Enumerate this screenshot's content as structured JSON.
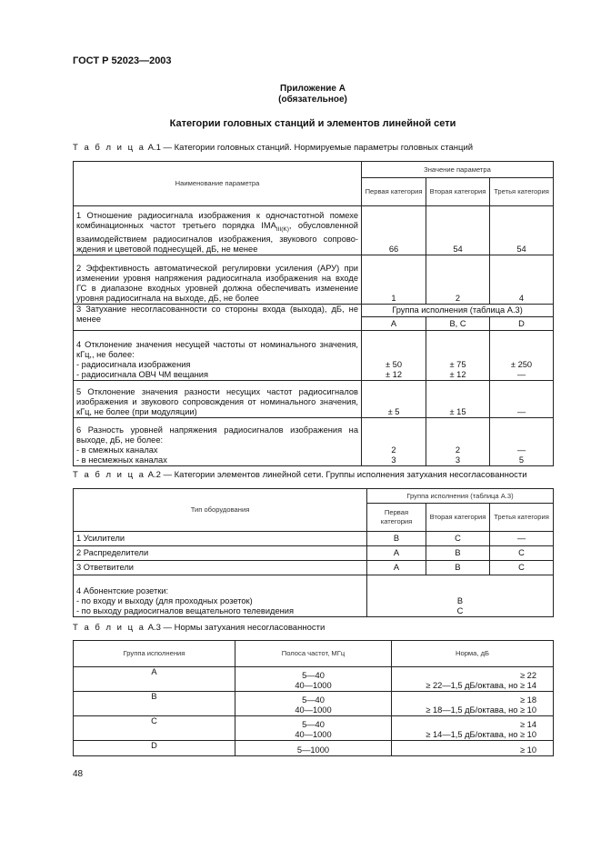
{
  "header": "ГОСТ Р 52023—2003",
  "appendix": {
    "title": "Приложение А",
    "status": "(обязательное)"
  },
  "heading": "Категории головных станций и элементов линейной сети",
  "table_a1": {
    "caption_prefix": "Т а б л и ц а",
    "caption": "А.1 — Категории головных станций. Нормируемые параметры головных станций",
    "col_param": "Наименование параметра",
    "col_value": "Значение параметра",
    "categories": [
      "Первая категория",
      "Вторая категория",
      "Третья категория"
    ],
    "rows": [
      {
        "text": "1 Отношение радиосигнала изображения к одночастотной помехе комбинационных частот третьего порядка IMA",
        "sub": "III(K)",
        "text2": ", обусловленной взаимодействием радиосигналов изображения, звукового сопрово-ждения и цветовой поднесущей, дБ, не менее",
        "v": [
          "66",
          "54",
          "54"
        ]
      },
      {
        "text": "2 Эффективность автоматической регулировки усиления (АРУ) при изменении уровня напряжения радиосигнала изображения на входе ГС в диапазоне входных уровней должна обеспечивать изменение уровня радиосигнала на выходе, дБ, не более",
        "v": [
          "1",
          "2",
          "4"
        ]
      },
      {
        "text": "3 Затухание несогласованности со стороны входа (выхода), дБ, не менее",
        "span": "Группа исполнения (таблица А.3)",
        "v": [
          "A",
          "B, C",
          "D"
        ]
      },
      {
        "lines": [
          "4 Отклонение значения несущей частоты от номинального значения, кГц,, не более:",
          " - радиосигнала изображения",
          " - радиосигнала ОВЧ ЧМ вещания"
        ],
        "v": [
          "± 50\n± 12",
          "± 75\n± 12",
          "± 250\n—"
        ]
      },
      {
        "text": "5 Отклонение значения разности несущих частот радиосигналов изображения и звукового сопровождения от номинального значения, кГц, не более (при модуляции)",
        "v": [
          "± 5",
          "± 15",
          "—"
        ]
      },
      {
        "lines": [
          "6 Разность уровней напряжения радиосигналов изображения на выходе, дБ, не более:",
          "- в смежных каналах",
          "- в несмежных каналах"
        ],
        "v": [
          "2\n3",
          "2\n3",
          "—\n5"
        ]
      }
    ]
  },
  "table_a2": {
    "caption_prefix": "Т а б л и ц а",
    "caption": "А.2 — Категории элементов линейной сети. Группы исполнения затухания несогласованности",
    "col_type": "Тип оборудования",
    "col_group": "Группа исполнения (таблица А.3)",
    "categories": [
      "Первая категория",
      "Вторая категория",
      "Третья категория"
    ],
    "rows": [
      {
        "name": "1 Усилители",
        "v": [
          "B",
          "C",
          "—"
        ]
      },
      {
        "name": "2 Распределители",
        "v": [
          "A",
          "B",
          "C"
        ]
      },
      {
        "name": "3 Ответвители",
        "v": [
          "A",
          "B",
          "C"
        ]
      }
    ],
    "row4": {
      "lines": [
        "4 Абонентские розетки:",
        "- по входу и выходу (для проходных розеток)",
        "- по выходу радиосигналов вещательного телевидения"
      ],
      "v": [
        "B",
        "C"
      ]
    }
  },
  "table_a3": {
    "caption_prefix": "Т а б л и ц а",
    "caption": "А.3 — Нормы затухания несогласованности",
    "headers": [
      "Группа исполнения",
      "Полоса частот, МГц",
      "Норма, дБ"
    ],
    "rows": [
      {
        "g": "A",
        "f": [
          "5—40",
          "40—1000"
        ],
        "n": [
          "≥ 22",
          "≥ 22—1,5 дБ/октава, но ≥ 14"
        ]
      },
      {
        "g": "B",
        "f": [
          "5—40",
          "40—1000"
        ],
        "n": [
          "≥ 18",
          "≥ 18—1,5 дБ/октава, но ≥ 10"
        ]
      },
      {
        "g": "C",
        "f": [
          "5—40",
          "40—1000"
        ],
        "n": [
          "≥ 14",
          "≥ 14—1,5 дБ/октава, но ≥ 10"
        ]
      },
      {
        "g": "D",
        "f": [
          "5—1000"
        ],
        "n": [
          "≥ 10"
        ]
      }
    ]
  },
  "page_number": "48"
}
